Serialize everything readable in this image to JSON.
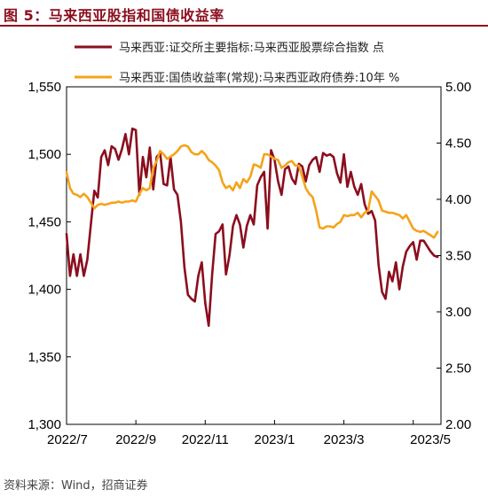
{
  "title": "图 5：马来西亚股指和国债收益率",
  "source": "资料来源：Wind，招商证券",
  "colors": {
    "title": "#8B0E1E",
    "series_index": "#8B0E1E",
    "series_yield": "#F5A31A"
  },
  "chart_data": {
    "type": "line",
    "grid": false,
    "legend_placement": "top",
    "x_ticks": [
      "2022/7",
      "2022/9",
      "2022/11",
      "2023/1",
      "2023/3",
      "2023/5"
    ],
    "x_range": [
      0,
      10.8
    ],
    "y_left": {
      "ticks": [
        "1,300",
        "1,350",
        "1,400",
        "1,450",
        "1,500",
        "1,550"
      ],
      "range": [
        1300,
        1550
      ]
    },
    "y_right": {
      "ticks": [
        "2.00",
        "2.50",
        "3.00",
        "3.50",
        "4.00",
        "4.50",
        "5.00"
      ],
      "range": [
        2.0,
        5.0
      ]
    },
    "series": [
      {
        "name": "马来西亚:证交所主要指标:马来西亚股票综合指数 点",
        "axis": "left",
        "x": [
          0.0,
          0.1,
          0.2,
          0.3,
          0.4,
          0.5,
          0.6,
          0.7,
          0.8,
          0.9,
          1.0,
          1.1,
          1.2,
          1.3,
          1.4,
          1.5,
          1.6,
          1.7,
          1.8,
          1.9,
          2.0,
          2.1,
          2.2,
          2.3,
          2.4,
          2.5,
          2.6,
          2.7,
          2.8,
          2.9,
          3.0,
          3.1,
          3.2,
          3.3,
          3.4,
          3.5,
          3.6,
          3.7,
          3.8,
          3.9,
          4.0,
          4.1,
          4.2,
          4.3,
          4.4,
          4.5,
          4.6,
          4.7,
          4.8,
          4.9,
          5.0,
          5.1,
          5.2,
          5.3,
          5.4,
          5.5,
          5.6,
          5.7,
          5.8,
          5.9,
          6.0,
          6.1,
          6.2,
          6.3,
          6.4,
          6.5,
          6.6,
          6.7,
          6.8,
          6.9,
          7.0,
          7.1,
          7.2,
          7.3,
          7.4,
          7.5,
          7.6,
          7.7,
          7.8,
          7.9,
          8.0,
          8.1,
          8.2,
          8.3,
          8.4,
          8.5,
          8.6,
          8.7,
          8.8,
          8.9,
          9.0,
          9.1,
          9.2,
          9.3,
          9.4,
          9.5,
          9.6,
          9.7,
          9.8,
          9.9,
          10.0,
          10.1,
          10.2,
          10.3,
          10.4,
          10.5,
          10.6,
          10.7
        ],
        "values": [
          1441,
          1410,
          1426,
          1410,
          1426,
          1410,
          1422,
          1448,
          1473,
          1468,
          1498,
          1503,
          1492,
          1506,
          1504,
          1496,
          1504,
          1515,
          1500,
          1519,
          1518,
          1470,
          1498,
          1483,
          1505,
          1474,
          1498,
          1501,
          1478,
          1477,
          1498,
          1474,
          1470,
          1450,
          1416,
          1396,
          1393,
          1391,
          1410,
          1420,
          1390,
          1373,
          1411,
          1441,
          1443,
          1448,
          1411,
          1425,
          1447,
          1455,
          1448,
          1431,
          1447,
          1455,
          1448,
          1477,
          1483,
          1487,
          1445,
          1503,
          1496,
          1480,
          1470,
          1489,
          1491,
          1482,
          1478,
          1493,
          1491,
          1480,
          1492,
          1496,
          1498,
          1487,
          1501,
          1499,
          1500,
          1498,
          1486,
          1479,
          1500,
          1476,
          1487,
          1476,
          1470,
          1478,
          1463,
          1456,
          1458,
          1451,
          1418,
          1398,
          1393,
          1413,
          1406,
          1420,
          1400,
          1417,
          1428,
          1432,
          1435,
          1422,
          1436,
          1436,
          1432,
          1428,
          1425,
          1424
        ],
        "values_tail_note": ""
      },
      {
        "name": "马来西亚:国债收益率(常规):马来西亚政府债券:10年 %",
        "axis": "right",
        "x": [
          0.0,
          0.1,
          0.2,
          0.3,
          0.4,
          0.5,
          0.6,
          0.7,
          0.8,
          0.9,
          1.0,
          1.1,
          1.2,
          1.3,
          1.4,
          1.5,
          1.6,
          1.7,
          1.8,
          1.9,
          2.0,
          2.1,
          2.2,
          2.3,
          2.4,
          2.5,
          2.6,
          2.7,
          2.8,
          2.9,
          3.0,
          3.1,
          3.2,
          3.3,
          3.4,
          3.5,
          3.6,
          3.7,
          3.8,
          3.9,
          4.0,
          4.1,
          4.2,
          4.3,
          4.4,
          4.5,
          4.6,
          4.7,
          4.8,
          4.9,
          5.0,
          5.1,
          5.2,
          5.3,
          5.4,
          5.5,
          5.6,
          5.7,
          5.8,
          5.9,
          6.0,
          6.1,
          6.2,
          6.3,
          6.4,
          6.5,
          6.6,
          6.7,
          6.8,
          6.9,
          7.0,
          7.1,
          7.2,
          7.3,
          7.4,
          7.5,
          7.6,
          7.7,
          7.8,
          7.9,
          8.0,
          8.1,
          8.2,
          8.3,
          8.4,
          8.5,
          8.6,
          8.7,
          8.8,
          8.9,
          9.0,
          9.1,
          9.2,
          9.3,
          9.4,
          9.5,
          9.6,
          9.7,
          9.8,
          9.9,
          10.0,
          10.1,
          10.2,
          10.3,
          10.4,
          10.5,
          10.6,
          10.7
        ],
        "values": [
          4.24,
          4.1,
          4.05,
          4.04,
          4.02,
          4.05,
          4.02,
          3.97,
          3.92,
          3.95,
          3.96,
          3.95,
          3.96,
          3.97,
          3.97,
          3.98,
          3.97,
          3.98,
          3.98,
          3.99,
          3.98,
          4.05,
          4.1,
          4.08,
          4.1,
          4.28,
          4.34,
          4.43,
          4.4,
          4.36,
          4.38,
          4.4,
          4.43,
          4.47,
          4.48,
          4.47,
          4.42,
          4.4,
          4.4,
          4.43,
          4.4,
          4.35,
          4.33,
          4.3,
          4.26,
          4.15,
          4.1,
          4.12,
          4.08,
          4.15,
          4.1,
          4.18,
          4.15,
          4.2,
          4.31,
          4.3,
          4.28,
          4.4,
          4.4,
          4.38,
          4.36,
          4.35,
          4.28,
          4.3,
          4.33,
          4.34,
          4.3,
          4.3,
          4.2,
          4.1,
          4.05,
          4.02,
          3.9,
          3.75,
          3.74,
          3.76,
          3.76,
          3.75,
          3.78,
          3.8,
          3.86,
          3.85,
          3.86,
          3.86,
          3.88,
          3.84,
          3.88,
          3.9,
          4.07,
          4.03,
          3.99,
          3.9,
          3.89,
          3.88,
          3.88,
          3.87,
          3.86,
          3.83,
          3.86,
          3.8,
          3.74,
          3.72,
          3.71,
          3.72,
          3.7,
          3.68,
          3.66,
          3.71
        ]
      }
    ]
  }
}
